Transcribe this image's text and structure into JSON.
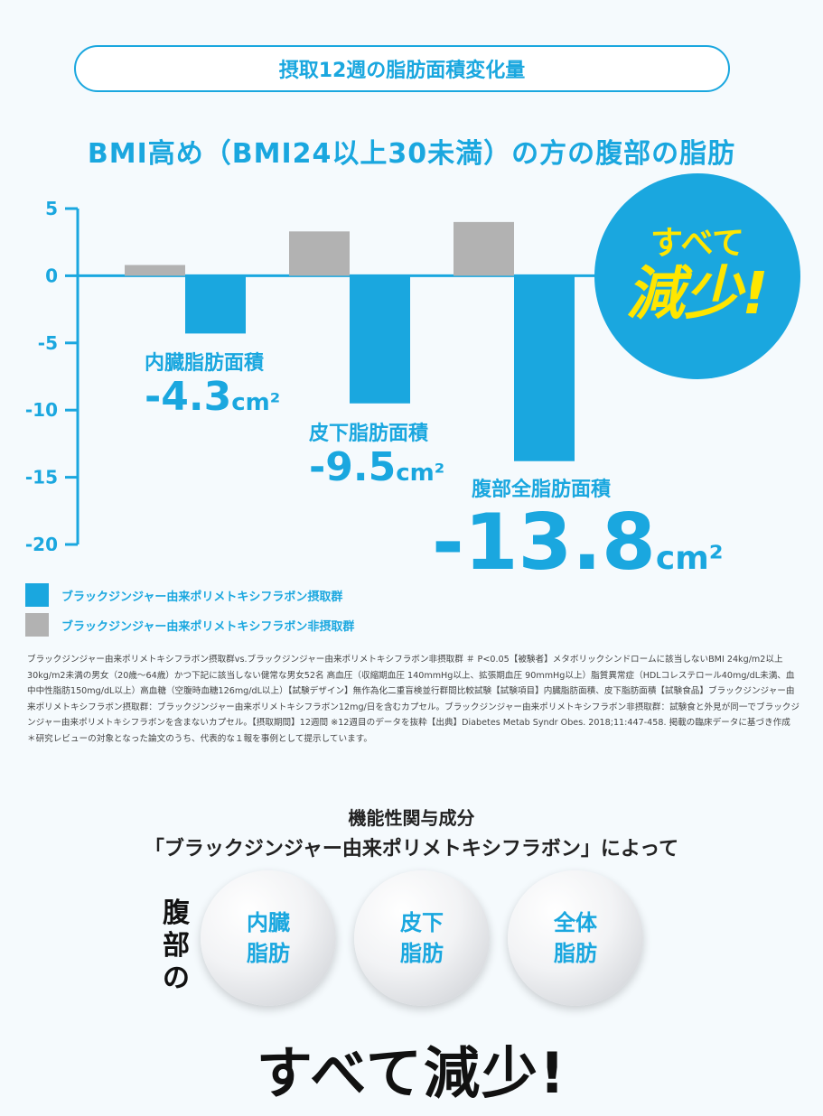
{
  "header": {
    "pill_title": "摂取12週の脂肪面積変化量",
    "subtitle": "BMI高め（BMI24以上30未満）の方の腹部の脂肪"
  },
  "badge": {
    "line1": "すべて",
    "line2": "減少!"
  },
  "callouts": [
    {
      "label": "内臓脂肪面積",
      "value": "-4.3",
      "unit": "cm²"
    },
    {
      "label": "皮下脂肪面積",
      "value": "-9.5",
      "unit": "cm²"
    },
    {
      "label": "腹部全脂肪面積",
      "value": "-13.8",
      "unit": "cm²"
    }
  ],
  "legend": [
    {
      "label": "ブラックジンジャー由来ポリメトキシフラボン摂取群",
      "color": "#1aa7df"
    },
    {
      "label": "ブラックジンジャー由来ポリメトキシフラボン非摂取群",
      "color": "#b2b2b2"
    }
  ],
  "chart_data": {
    "type": "bar",
    "categories": [
      "内臓脂肪面積",
      "皮下脂肪面積",
      "腹部全脂肪面積"
    ],
    "series": [
      {
        "name": "ブラックジンジャー由来ポリメトキシフラボン非摂取群",
        "color": "#b2b2b2",
        "values": [
          0.8,
          3.3,
          4.0
        ]
      },
      {
        "name": "ブラックジンジャー由来ポリメトキシフラボン摂取群",
        "color": "#1aa7df",
        "values": [
          -4.3,
          -9.5,
          -13.8
        ]
      }
    ],
    "yticks": [
      5,
      0,
      -5,
      -10,
      -15,
      -20
    ],
    "ylim": [
      -20,
      5
    ],
    "title": "",
    "xlabel": "",
    "ylabel": ""
  },
  "footnote": "ブラックジンジャー由来ポリメトキシフラボン摂取群vs.ブラックジンジャー由来ポリメトキシフラボン非摂取群 ＃ P<0.05【被験者】メタボリックシンドロームに該当しないBMI 24kg/m2以上30kg/m2未満の男女（20歳〜64歳）かつ下記に該当しない健常な男女52名 高血圧（収縮期血圧 140mmHg以上、拡張期血圧 90mmHg以上）脂質異常症（HDLコレステロール40mg/dL未満、血中中性脂肪150mg/dL以上）高血糖（空腹時血糖126mg/dL以上）【試験デザイン】無作為化二重盲検並行群間比較試験【試験項目】内臓脂肪面積、皮下脂肪面積【試験食品】ブラックジンジャー由来ポリメトキシフラボン摂取群：ブラックジンジャー由来ポリメトキシフラボン12mg/日を含むカプセル。ブラックジンジャー由来ポリメトキシフラボン非摂取群：試験食と外見が同一でブラックジンジャー由来ポリメトキシフラボンを含まないカプセル。【摂取期間】12週間 ※12週目のデータを抜粋【出典】Diabetes Metab Syndr Obes. 2018;11:447-458. 掲載の臨床データに基づき作成 ＊研究レビューの対象となった論文のうち、代表的な１報を事例として提示しています。",
  "bottom": {
    "line1": "機能性関与成分",
    "line2": "「ブラックジンジャー由来ポリメトキシフラボン」によって",
    "vertical": [
      "腹",
      "部",
      "の"
    ],
    "circles": [
      {
        "line1": "内臓",
        "line2": "脂肪"
      },
      {
        "line1": "皮下",
        "line2": "脂肪"
      },
      {
        "line1": "全体",
        "line2": "脂肪"
      }
    ],
    "final": "すべて減少!"
  }
}
